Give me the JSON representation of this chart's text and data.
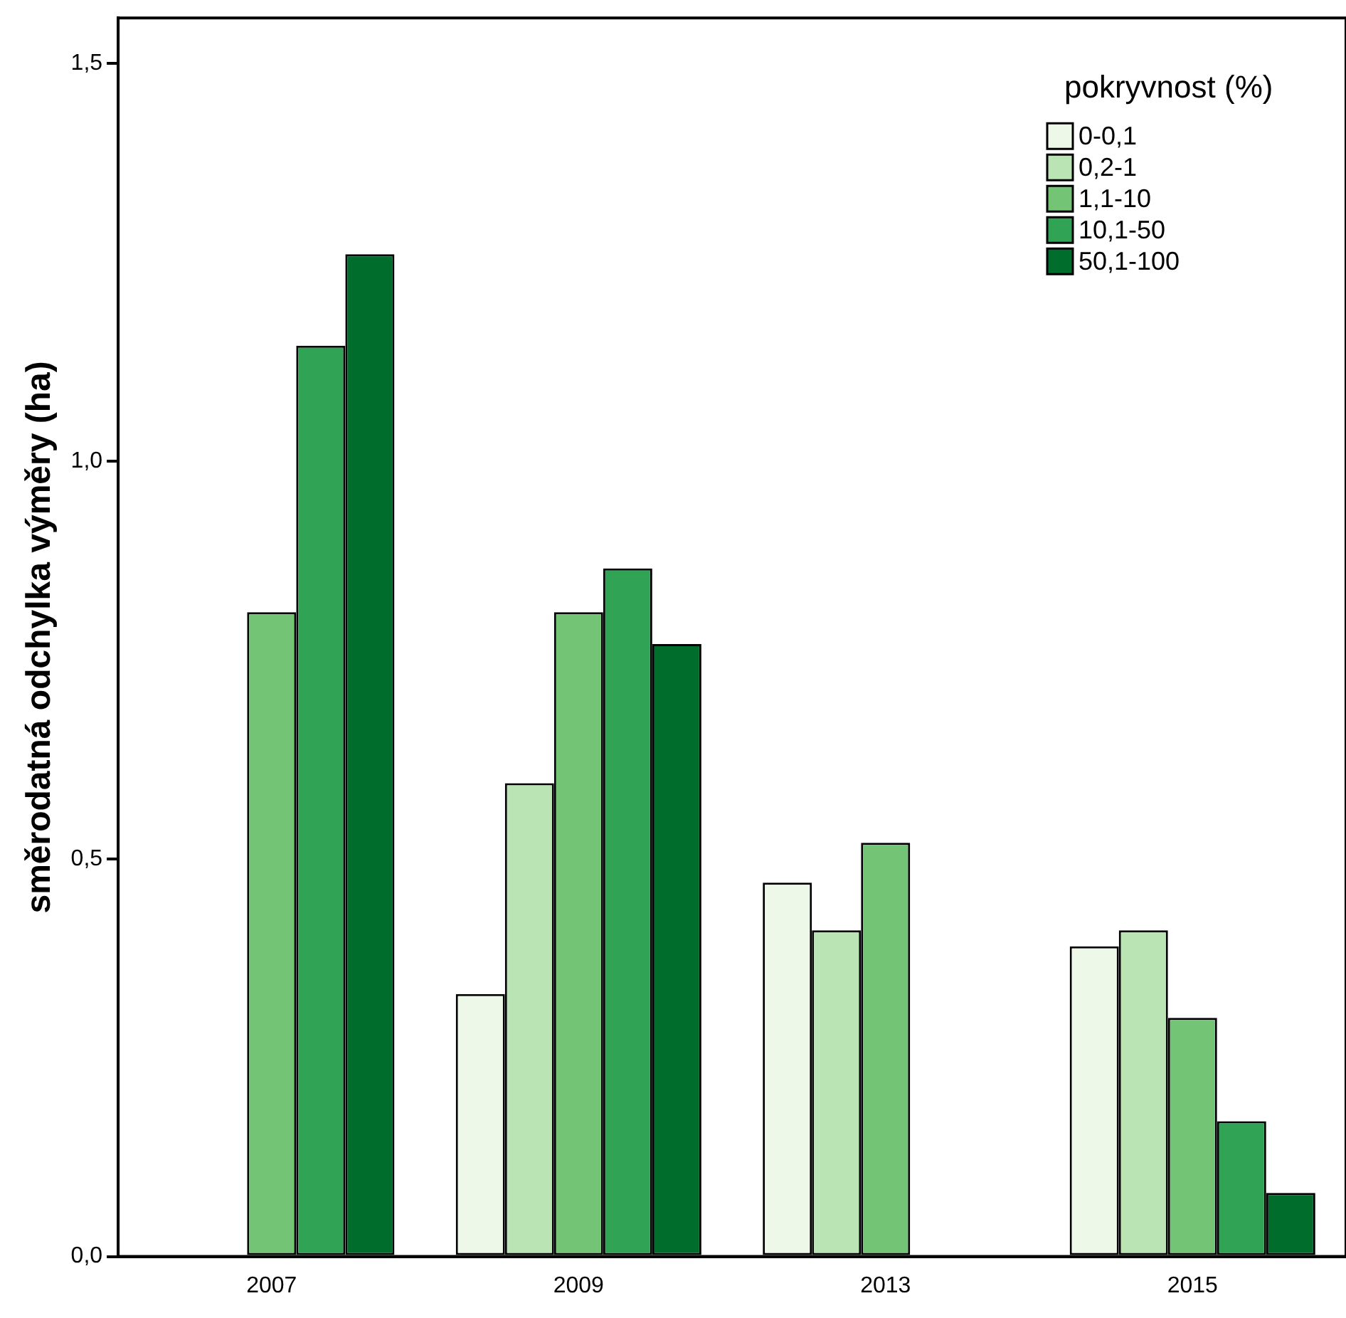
{
  "chart_data": {
    "type": "bar",
    "ylabel": "směrodatná odchylka výměry (ha)",
    "legend_title": "pokryvnost (%)",
    "categories": [
      "2007",
      "2009",
      "2013",
      "2015"
    ],
    "series": [
      {
        "name": "0-0,1",
        "color": "#edf8e9",
        "values": [
          null,
          0.33,
          0.47,
          0.39
        ]
      },
      {
        "name": "0,2-1",
        "color": "#bae4b3",
        "values": [
          null,
          0.595,
          0.41,
          0.41
        ]
      },
      {
        "name": "1,1-10",
        "color": "#74c476",
        "values": [
          0.81,
          0.81,
          0.52,
          0.3
        ]
      },
      {
        "name": "10,1-50",
        "color": "#31a354",
        "values": [
          1.145,
          0.865,
          null,
          0.17
        ]
      },
      {
        "name": "50,1-100",
        "color": "#006d2c",
        "values": [
          1.26,
          0.77,
          null,
          0.08
        ]
      }
    ],
    "ylim": [
      0,
      1.557
    ],
    "yticks": [
      {
        "value": 0,
        "label": "0,0"
      },
      {
        "value": 0.5,
        "label": "0,5"
      },
      {
        "value": 1,
        "label": "1,0"
      },
      {
        "value": 1.5,
        "label": "1,5"
      }
    ],
    "grid": false,
    "legend": "top right"
  }
}
